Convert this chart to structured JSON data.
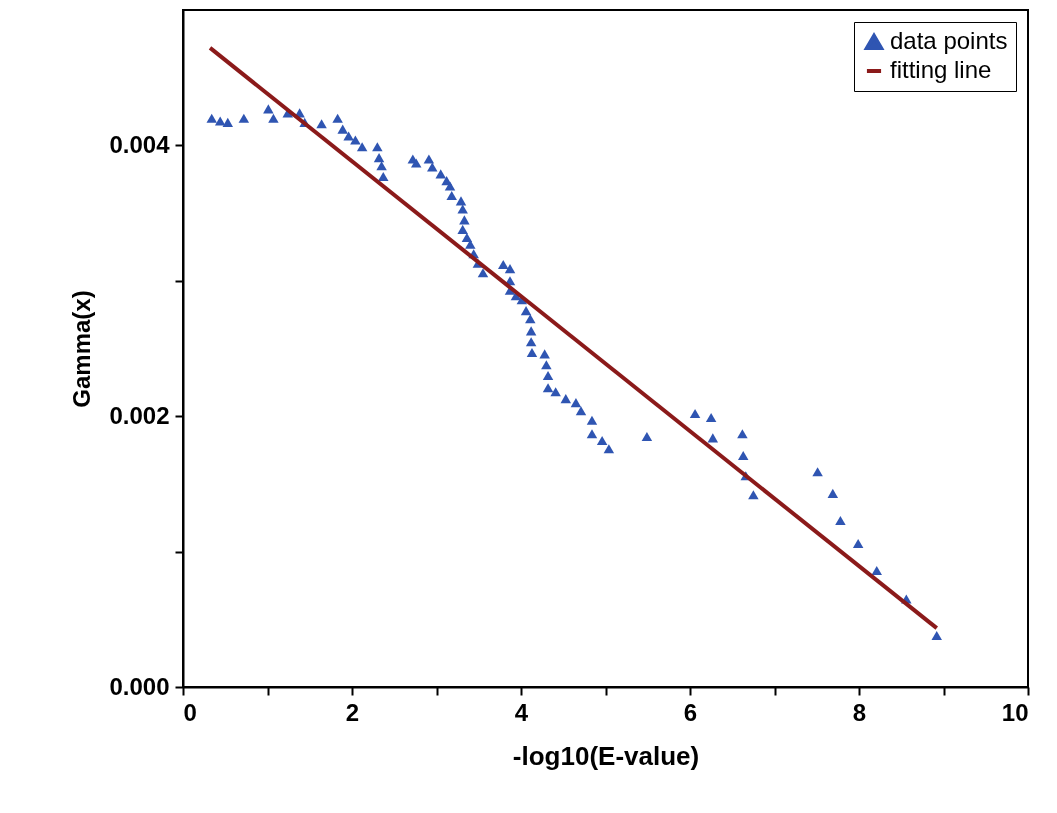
{
  "chart_data": {
    "type": "scatter",
    "xlabel": "-log10(E-value)",
    "ylabel": "Gamma(x)",
    "xlim": [
      0,
      10
    ],
    "ylim": [
      0,
      0.005
    ],
    "xticks": [
      0,
      {
        "value": 1,
        "label": null
      },
      2,
      {
        "value": 3,
        "label": null
      },
      4,
      {
        "value": 5,
        "label": null
      },
      6,
      {
        "value": 7,
        "label": null
      },
      8,
      {
        "value": 9,
        "label": null
      },
      10
    ],
    "yticks": [
      {
        "value": 0,
        "label": "0.000"
      },
      {
        "value": 0.001,
        "label": null
      },
      {
        "value": 0.002,
        "label": "0.002"
      },
      {
        "value": 0.003,
        "label": null
      },
      {
        "value": 0.004,
        "label": "0.004"
      }
    ],
    "legend": "top right",
    "grid": false,
    "series": [
      {
        "name": "data points",
        "marker": "triangle",
        "color": "#2f55b2",
        "x": [
          0.34,
          0.44,
          0.53,
          0.72,
          1.01,
          1.07,
          1.24,
          1.38,
          1.44,
          1.64,
          1.83,
          1.89,
          1.96,
          2.04,
          2.12,
          2.3,
          2.32,
          2.35,
          2.37,
          2.72,
          2.76,
          2.91,
          2.95,
          3.05,
          3.12,
          3.16,
          3.18,
          3.29,
          3.31,
          3.33,
          3.31,
          3.36,
          3.4,
          3.44,
          3.49,
          3.55,
          3.79,
          3.87,
          3.87,
          3.87,
          3.94,
          4.01,
          4.06,
          4.11,
          4.12,
          4.12,
          4.13,
          4.28,
          4.3,
          4.32,
          4.32,
          4.41,
          4.53,
          4.65,
          4.71,
          4.84,
          4.84,
          4.96,
          5.04,
          5.49,
          6.06,
          6.25,
          6.27,
          6.62,
          6.63,
          6.66,
          6.75,
          7.51,
          7.69,
          7.78,
          7.99,
          8.21,
          8.56,
          8.92
        ],
        "values": [
          0.0042,
          0.00418,
          0.00417,
          0.0042,
          0.00427,
          0.0042,
          0.00424,
          0.00424,
          0.00417,
          0.00416,
          0.0042,
          0.00412,
          0.00407,
          0.00404,
          0.00399,
          0.00399,
          0.00391,
          0.00385,
          0.00377,
          0.0039,
          0.00387,
          0.0039,
          0.00384,
          0.00379,
          0.00374,
          0.0037,
          0.00363,
          0.00359,
          0.00353,
          0.00345,
          0.00338,
          0.00332,
          0.00327,
          0.0032,
          0.00313,
          0.00306,
          0.00312,
          0.00309,
          0.003,
          0.00293,
          0.00289,
          0.00286,
          0.00278,
          0.00272,
          0.00263,
          0.00255,
          0.00247,
          0.00246,
          0.00238,
          0.0023,
          0.00221,
          0.00218,
          0.00213,
          0.0021,
          0.00204,
          0.00197,
          0.00187,
          0.00182,
          0.00176,
          0.00185,
          0.00202,
          0.00199,
          0.00184,
          0.00187,
          0.00171,
          0.00156,
          0.00142,
          0.00159,
          0.00143,
          0.00123,
          0.00106,
          0.00086,
          0.00065,
          0.00038
        ]
      },
      {
        "name": "fitting line",
        "type": "line",
        "line_style": "solid",
        "color": "#8b1a1a",
        "x": [
          0.32,
          8.92
        ],
        "values": [
          0.00472,
          0.000435
        ]
      }
    ]
  }
}
